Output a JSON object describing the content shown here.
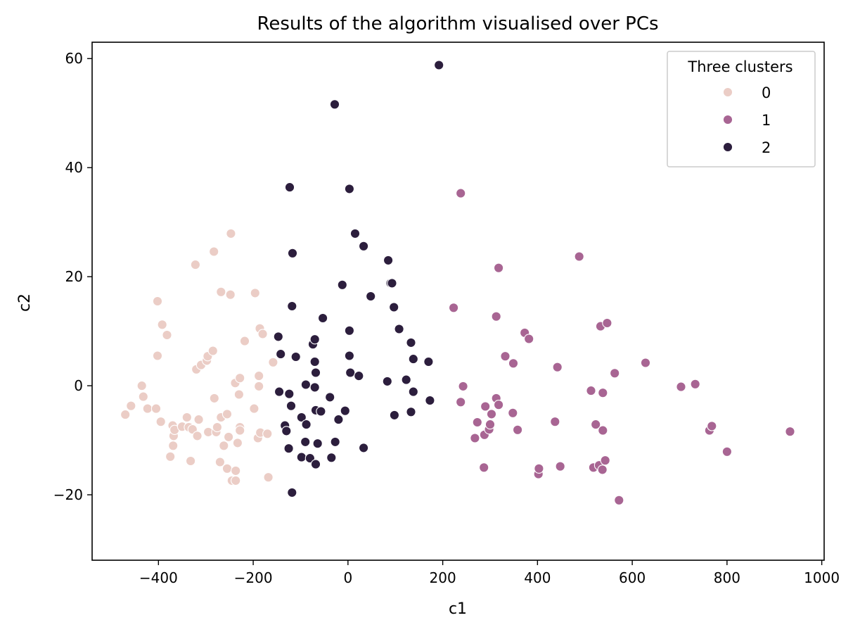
{
  "chart_data": {
    "type": "scatter",
    "title": "Results of the algorithm visualised over PCs",
    "xlabel": "c1",
    "ylabel": "c2",
    "xlim": [
      -540,
      1005
    ],
    "ylim": [
      -32,
      63
    ],
    "xticks": [
      -400,
      -200,
      0,
      200,
      400,
      600,
      800,
      1000
    ],
    "yticks": [
      -20,
      0,
      20,
      40,
      60
    ],
    "xtick_labels": [
      "−400",
      "−200",
      "0",
      "200",
      "400",
      "600",
      "800",
      "1000"
    ],
    "ytick_labels": [
      "−20",
      "0",
      "20",
      "40",
      "60"
    ],
    "grid": false,
    "legend": {
      "title": "Three clusters",
      "placement": "top-right"
    },
    "series": [
      {
        "name": "0",
        "color": "#ebcdc6",
        "points": [
          [
            -470,
            -5.3
          ],
          [
            -458,
            -3.7
          ],
          [
            -435,
            0
          ],
          [
            -432,
            -2
          ],
          [
            -423,
            -4.2
          ],
          [
            -405,
            -4.2
          ],
          [
            -402,
            15.5
          ],
          [
            -402,
            5.5
          ],
          [
            -395,
            -6.6
          ],
          [
            -392,
            11.2
          ],
          [
            -382,
            9.3
          ],
          [
            -375,
            -13
          ],
          [
            -370,
            -7.3
          ],
          [
            -369,
            -11
          ],
          [
            -368,
            -9.2
          ],
          [
            -366,
            -8.1
          ],
          [
            -350,
            -7.5
          ],
          [
            -340,
            -5.8
          ],
          [
            -336,
            -7.6
          ],
          [
            -332,
            -13.8
          ],
          [
            -328,
            -8
          ],
          [
            -322,
            22.2
          ],
          [
            -320,
            3
          ],
          [
            -318,
            -9.2
          ],
          [
            -315,
            -6.2
          ],
          [
            -310,
            3.8
          ],
          [
            -298,
            4.6
          ],
          [
            -296,
            5.4
          ],
          [
            -295,
            -8.5
          ],
          [
            -285,
            6.4
          ],
          [
            -283,
            24.6
          ],
          [
            -282,
            -2.3
          ],
          [
            -278,
            -8.5
          ],
          [
            -276,
            -7.6
          ],
          [
            -270,
            -14
          ],
          [
            -268,
            17.2
          ],
          [
            -268,
            -5.8
          ],
          [
            -262,
            -11
          ],
          [
            -255,
            -5.2
          ],
          [
            -255,
            -15.2
          ],
          [
            -252,
            -9.4
          ],
          [
            -248,
            16.7
          ],
          [
            -247,
            27.9
          ],
          [
            -245,
            -17.4
          ],
          [
            -238,
            0.5
          ],
          [
            -237,
            -17.4
          ],
          [
            -237,
            -15.6
          ],
          [
            -233,
            -10.5
          ],
          [
            -230,
            -1.6
          ],
          [
            -228,
            1.4
          ],
          [
            -228,
            -7.6
          ],
          [
            -228,
            -8.2
          ],
          [
            -218,
            8.2
          ],
          [
            -198,
            -4.2
          ],
          [
            -196,
            17
          ],
          [
            -190,
            -9.6
          ],
          [
            -188,
            1.8
          ],
          [
            -188,
            -0.1
          ],
          [
            -186,
            10.5
          ],
          [
            -185,
            -8.6
          ],
          [
            -180,
            9.5
          ],
          [
            -170,
            -8.8
          ],
          [
            -168,
            -16.8
          ],
          [
            -158,
            4.3
          ]
        ]
      },
      {
        "name": "1",
        "color": "#a86593",
        "points": [
          [
            223,
            14.3
          ],
          [
            238,
            35.3
          ],
          [
            238,
            -3
          ],
          [
            243,
            -0.1
          ],
          [
            268,
            -9.6
          ],
          [
            273,
            -6.7
          ],
          [
            287,
            -15
          ],
          [
            288,
            -9
          ],
          [
            290,
            -3.8
          ],
          [
            298,
            -8
          ],
          [
            300,
            -7.1
          ],
          [
            303,
            -5.2
          ],
          [
            313,
            12.7
          ],
          [
            313,
            -2.3
          ],
          [
            318,
            21.6
          ],
          [
            318,
            -3.5
          ],
          [
            332,
            5.4
          ],
          [
            348,
            -5
          ],
          [
            349,
            4.1
          ],
          [
            358,
            -8.1
          ],
          [
            373,
            9.7
          ],
          [
            382,
            8.6
          ],
          [
            402,
            -16.2
          ],
          [
            403,
            -15.2
          ],
          [
            437,
            -6.6
          ],
          [
            442,
            3.4
          ],
          [
            448,
            -14.8
          ],
          [
            488,
            23.7
          ],
          [
            513,
            -0.9
          ],
          [
            518,
            -15
          ],
          [
            523,
            -7.1
          ],
          [
            530,
            -14.6
          ],
          [
            533,
            10.9
          ],
          [
            537,
            -15.4
          ],
          [
            538,
            -1.3
          ],
          [
            538,
            -8.2
          ],
          [
            543,
            -13.7
          ],
          [
            547,
            11.5
          ],
          [
            563,
            2.3
          ],
          [
            572,
            -21
          ],
          [
            628,
            4.2
          ],
          [
            703,
            -0.2
          ],
          [
            733,
            0.3
          ],
          [
            763,
            -8.2
          ],
          [
            768,
            -7.4
          ],
          [
            800,
            -12.1
          ],
          [
            933,
            -8.4
          ]
        ]
      },
      {
        "name": "2",
        "color": "#2c1e3d",
        "points": [
          [
            -147,
            9
          ],
          [
            -145,
            -1.1
          ],
          [
            -142,
            5.8
          ],
          [
            -133,
            -7.3
          ],
          [
            -130,
            -8.3
          ],
          [
            -125,
            -11.5
          ],
          [
            -124,
            -1.5
          ],
          [
            -123,
            36.4
          ],
          [
            -120,
            -3.7
          ],
          [
            -118,
            -19.6
          ],
          [
            -118,
            14.6
          ],
          [
            -117,
            24.3
          ],
          [
            -110,
            5.3
          ],
          [
            -98,
            -13.1
          ],
          [
            -98,
            -5.8
          ],
          [
            -90,
            -10.3
          ],
          [
            -89,
            0.2
          ],
          [
            -88,
            -7.1
          ],
          [
            -80,
            -13.3
          ],
          [
            -74,
            7.6
          ],
          [
            -70,
            8.5
          ],
          [
            -70,
            4.4
          ],
          [
            -70,
            -0.3
          ],
          [
            -68,
            -14.4
          ],
          [
            -68,
            2.4
          ],
          [
            -68,
            -4.5
          ],
          [
            -64,
            -10.6
          ],
          [
            -57,
            -4.7
          ],
          [
            -53,
            12.4
          ],
          [
            -38,
            -2.1
          ],
          [
            -35,
            -13.2
          ],
          [
            -28,
            51.6
          ],
          [
            -27,
            -10.3
          ],
          [
            -20,
            -6.2
          ],
          [
            -12,
            18.5
          ],
          [
            -6,
            -4.6
          ],
          [
            3,
            36.1
          ],
          [
            3,
            10.1
          ],
          [
            3,
            5.5
          ],
          [
            5,
            2.4
          ],
          [
            15,
            27.9
          ],
          [
            23,
            1.8
          ],
          [
            33,
            25.6
          ],
          [
            33,
            -11.4
          ],
          [
            48,
            16.4
          ],
          [
            83,
            0.8
          ],
          [
            85,
            23
          ],
          [
            90,
            18.8
          ],
          [
            93,
            18.8
          ],
          [
            97,
            14.4
          ],
          [
            98,
            -5.4
          ],
          [
            108,
            10.4
          ],
          [
            123,
            1.1
          ],
          [
            133,
            7.9
          ],
          [
            133,
            -4.8
          ],
          [
            138,
            4.9
          ],
          [
            138,
            -1.1
          ],
          [
            170,
            4.4
          ],
          [
            173,
            -2.7
          ],
          [
            192,
            58.8
          ]
        ]
      }
    ]
  }
}
